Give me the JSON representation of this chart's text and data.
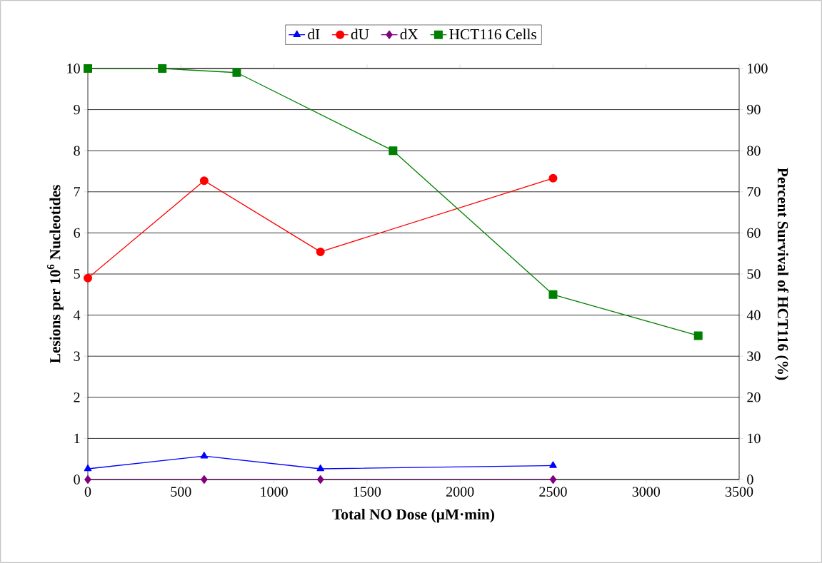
{
  "chart_data": {
    "type": "line",
    "xlabel": "Total NO Dose (µM·min)",
    "ylabel": "Lesions per 10$^{6}$ Nucleotides",
    "y2label": "Percent Survival of HCT116 (%)",
    "xlim": [
      0,
      3500
    ],
    "xticks": [
      0,
      500,
      1000,
      1500,
      2000,
      2500,
      3000,
      3500
    ],
    "ylim": [
      0,
      10
    ],
    "yticks": [
      0,
      1,
      2,
      3,
      4,
      5,
      6,
      7,
      8,
      9,
      10
    ],
    "y2lim": [
      0,
      100
    ],
    "y2ticks": [
      0,
      10,
      20,
      30,
      40,
      50,
      60,
      70,
      80,
      90,
      100
    ],
    "grid": "y",
    "legend": "top",
    "line_style": "solid",
    "series": [
      {
        "name": "dI",
        "color": "#0000ff",
        "marker": "triangle",
        "x": [
          0,
          625,
          1250,
          2500
        ],
        "values": [
          0.26,
          0.57,
          0.26,
          0.34
        ]
      },
      {
        "name": "dU",
        "color": "#ff0000",
        "marker": "circle",
        "x": [
          0,
          625,
          1250,
          2500
        ],
        "values": [
          4.9,
          7.27,
          5.54,
          7.33
        ]
      },
      {
        "name": "dX",
        "color": "#800080",
        "marker": "diamond",
        "x": [
          0,
          625,
          1250,
          2500
        ],
        "values": [
          0,
          0,
          0,
          0
        ]
      },
      {
        "name": "HCT116 Cells",
        "color": "#008000",
        "marker": "square",
        "axis": "y2",
        "x": [
          0,
          400,
          800,
          1640,
          2500,
          3280
        ],
        "values": [
          100,
          100,
          99,
          80,
          45,
          35
        ]
      }
    ]
  }
}
